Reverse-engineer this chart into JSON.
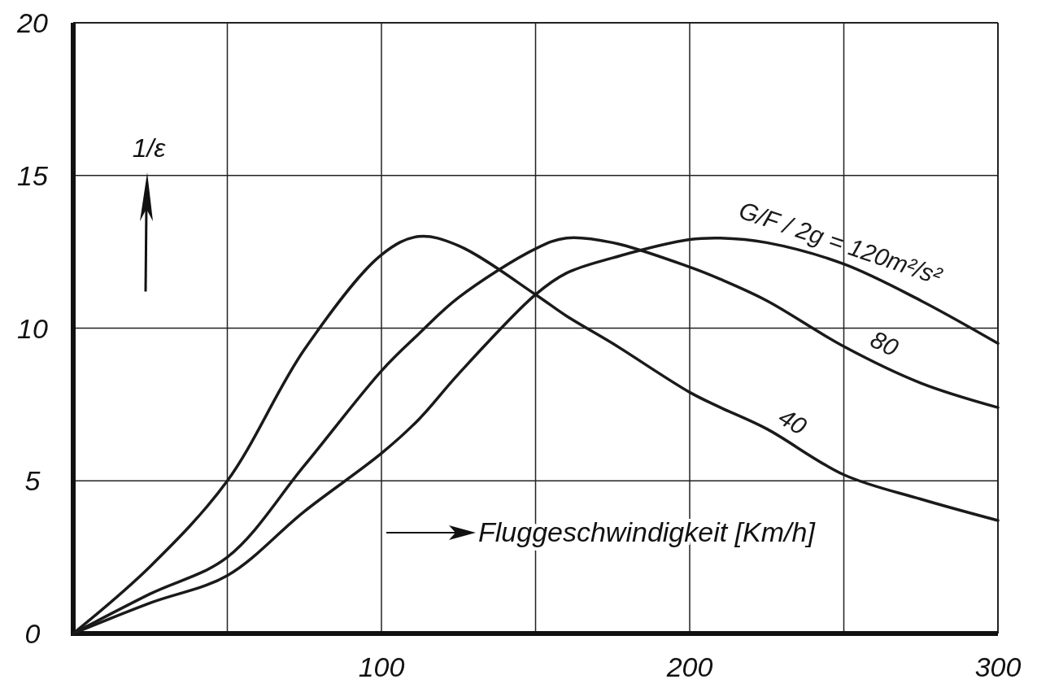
{
  "chart_data": {
    "type": "line",
    "xlabel": "Fluggeschwindigkeit [Km/h]",
    "ylabel": "1/ε",
    "x": [
      0,
      25,
      50,
      75,
      100,
      112,
      125,
      150,
      160,
      175,
      200,
      210,
      225,
      250,
      275,
      300
    ],
    "series": [
      {
        "name": "40",
        "color": "#1a1a1a",
        "values": [
          0,
          2.2,
          5,
          9.3,
          12.4,
          13,
          12.7,
          11.1,
          10.4,
          9.5,
          7.9,
          7.4,
          6.7,
          5.2,
          4.4,
          3.7
        ]
      },
      {
        "name": "80",
        "color": "#1a1a1a",
        "values": [
          0,
          1.3,
          2.5,
          5.5,
          8.6,
          9.8,
          11,
          12.6,
          12.95,
          12.8,
          12,
          11.6,
          10.9,
          9.4,
          8.2,
          7.4
        ]
      },
      {
        "name": "G/F / 2g = 120m²/s²",
        "color": "#1a1a1a",
        "values": [
          0,
          1,
          1.9,
          4,
          5.9,
          7,
          8.5,
          11.1,
          11.8,
          12.3,
          12.9,
          12.95,
          12.8,
          12.1,
          10.9,
          9.5
        ]
      }
    ],
    "xlim": [
      0,
      300
    ],
    "xticks": [
      {
        "value": 0,
        "label": null
      },
      {
        "value": 50,
        "label": null
      },
      100,
      {
        "value": 150,
        "label": null
      },
      200,
      {
        "value": 250,
        "label": null
      },
      300
    ],
    "ylim": [
      0,
      20
    ],
    "yticks": [
      0,
      5,
      10,
      15,
      20
    ],
    "grid": true,
    "marker": "none",
    "line_style": "solid"
  }
}
